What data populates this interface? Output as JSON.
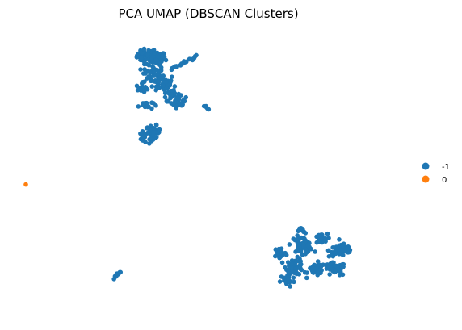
{
  "chart_data": {
    "type": "scatter",
    "title": "PCA UMAP (DBSCAN Clusters)",
    "xlabel": "",
    "ylabel": "",
    "xlim": [
      0,
      1
    ],
    "ylim": [
      0,
      1
    ],
    "grid": false,
    "axes_visible": false,
    "legend_position": "right",
    "series": [
      {
        "name": "-1",
        "color": "#1f77b4",
        "blobs": [
          {
            "cx": 0.33,
            "cy": 0.93,
            "sx": 0.012,
            "sy": 0.012,
            "n": 40
          },
          {
            "cx": 0.36,
            "cy": 0.92,
            "sx": 0.012,
            "sy": 0.012,
            "n": 40
          },
          {
            "cx": 0.35,
            "cy": 0.86,
            "sx": 0.015,
            "sy": 0.018,
            "n": 50
          },
          {
            "cx": 0.38,
            "cy": 0.83,
            "sx": 0.015,
            "sy": 0.015,
            "n": 40
          },
          {
            "cx": 0.4,
            "cy": 0.79,
            "sx": 0.012,
            "sy": 0.012,
            "n": 30
          },
          {
            "cx": 0.32,
            "cy": 0.81,
            "sx": 0.008,
            "sy": 0.008,
            "n": 15
          },
          {
            "cx": 0.33,
            "cy": 0.75,
            "sx": 0.01,
            "sy": 0.008,
            "n": 18
          },
          {
            "cx": 0.42,
            "cy": 0.76,
            "sx": 0.01,
            "sy": 0.01,
            "n": 25
          },
          {
            "cx": 0.35,
            "cy": 0.65,
            "sx": 0.01,
            "sy": 0.012,
            "n": 50
          },
          {
            "cx": 0.32,
            "cy": 0.635,
            "sx": 0.004,
            "sy": 0.008,
            "n": 10
          },
          {
            "cx": 0.87,
            "cy": 0.22,
            "sx": 0.018,
            "sy": 0.012,
            "n": 60
          },
          {
            "cx": 0.85,
            "cy": 0.15,
            "sx": 0.015,
            "sy": 0.012,
            "n": 40
          },
          {
            "cx": 0.8,
            "cy": 0.15,
            "sx": 0.012,
            "sy": 0.012,
            "n": 35
          },
          {
            "cx": 0.74,
            "cy": 0.16,
            "sx": 0.012,
            "sy": 0.015,
            "n": 60
          },
          {
            "cx": 0.76,
            "cy": 0.24,
            "sx": 0.015,
            "sy": 0.015,
            "n": 50
          },
          {
            "cx": 0.81,
            "cy": 0.26,
            "sx": 0.01,
            "sy": 0.01,
            "n": 25
          },
          {
            "cx": 0.76,
            "cy": 0.29,
            "sx": 0.005,
            "sy": 0.008,
            "n": 10
          },
          {
            "cx": 0.72,
            "cy": 0.11,
            "sx": 0.01,
            "sy": 0.012,
            "n": 25
          },
          {
            "cx": 0.7,
            "cy": 0.21,
            "sx": 0.008,
            "sy": 0.012,
            "n": 20
          }
        ],
        "lines": [
          {
            "x0": 0.4,
            "y0": 0.88,
            "x1": 0.47,
            "y1": 0.93,
            "n": 20
          },
          {
            "x0": 0.49,
            "y0": 0.745,
            "x1": 0.505,
            "y1": 0.735,
            "n": 6
          },
          {
            "x0": 0.245,
            "y0": 0.12,
            "x1": 0.258,
            "y1": 0.14,
            "n": 12
          }
        ]
      },
      {
        "name": "0",
        "color": "#ff7f0e",
        "points": [
          [
            0.0,
            0.46
          ]
        ]
      }
    ]
  }
}
